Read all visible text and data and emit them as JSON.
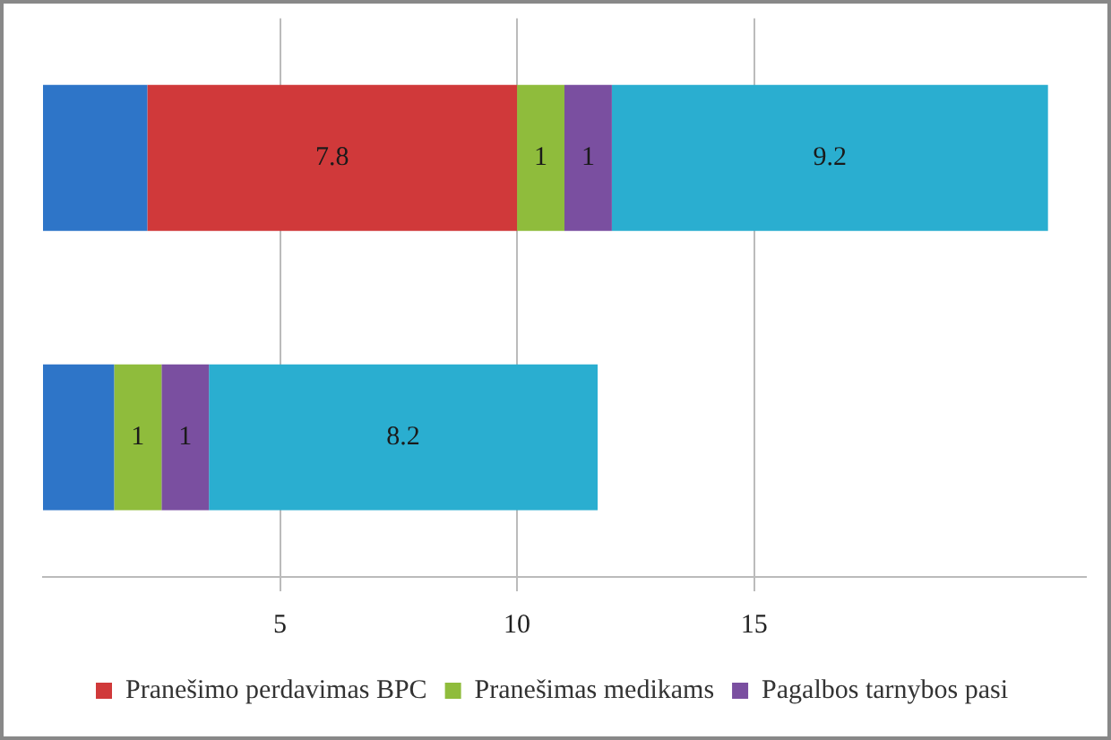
{
  "chart_data": {
    "type": "bar",
    "orientation": "horizontal",
    "stacked": true,
    "categories": [
      null,
      null
    ],
    "series": [
      {
        "color": "#2e75c8",
        "values": [
          2.2,
          1.5
        ],
        "value_labels": [
          null,
          null
        ]
      },
      {
        "name": "Pranešimo perdavimas BPC",
        "color": "#d0393a",
        "values": [
          7.8,
          null
        ],
        "value_labels": [
          "7.8",
          null
        ]
      },
      {
        "name": "Pranešimas medikams",
        "color": "#8fbc3c",
        "values": [
          1,
          1
        ],
        "value_labels": [
          "1",
          "1"
        ]
      },
      {
        "name": "Pagalbos tarnybos pasi",
        "color": "#7a4fa0",
        "values": [
          1,
          1
        ],
        "value_labels": [
          "1",
          "1"
        ]
      },
      {
        "color": "#2aaed0",
        "values": [
          9.2,
          8.2
        ],
        "value_labels": [
          "9.2",
          "8.2"
        ]
      }
    ],
    "xlim": [
      0,
      22
    ],
    "xticks": [
      5,
      10,
      15
    ],
    "grid": "x",
    "legend": "bottom"
  }
}
